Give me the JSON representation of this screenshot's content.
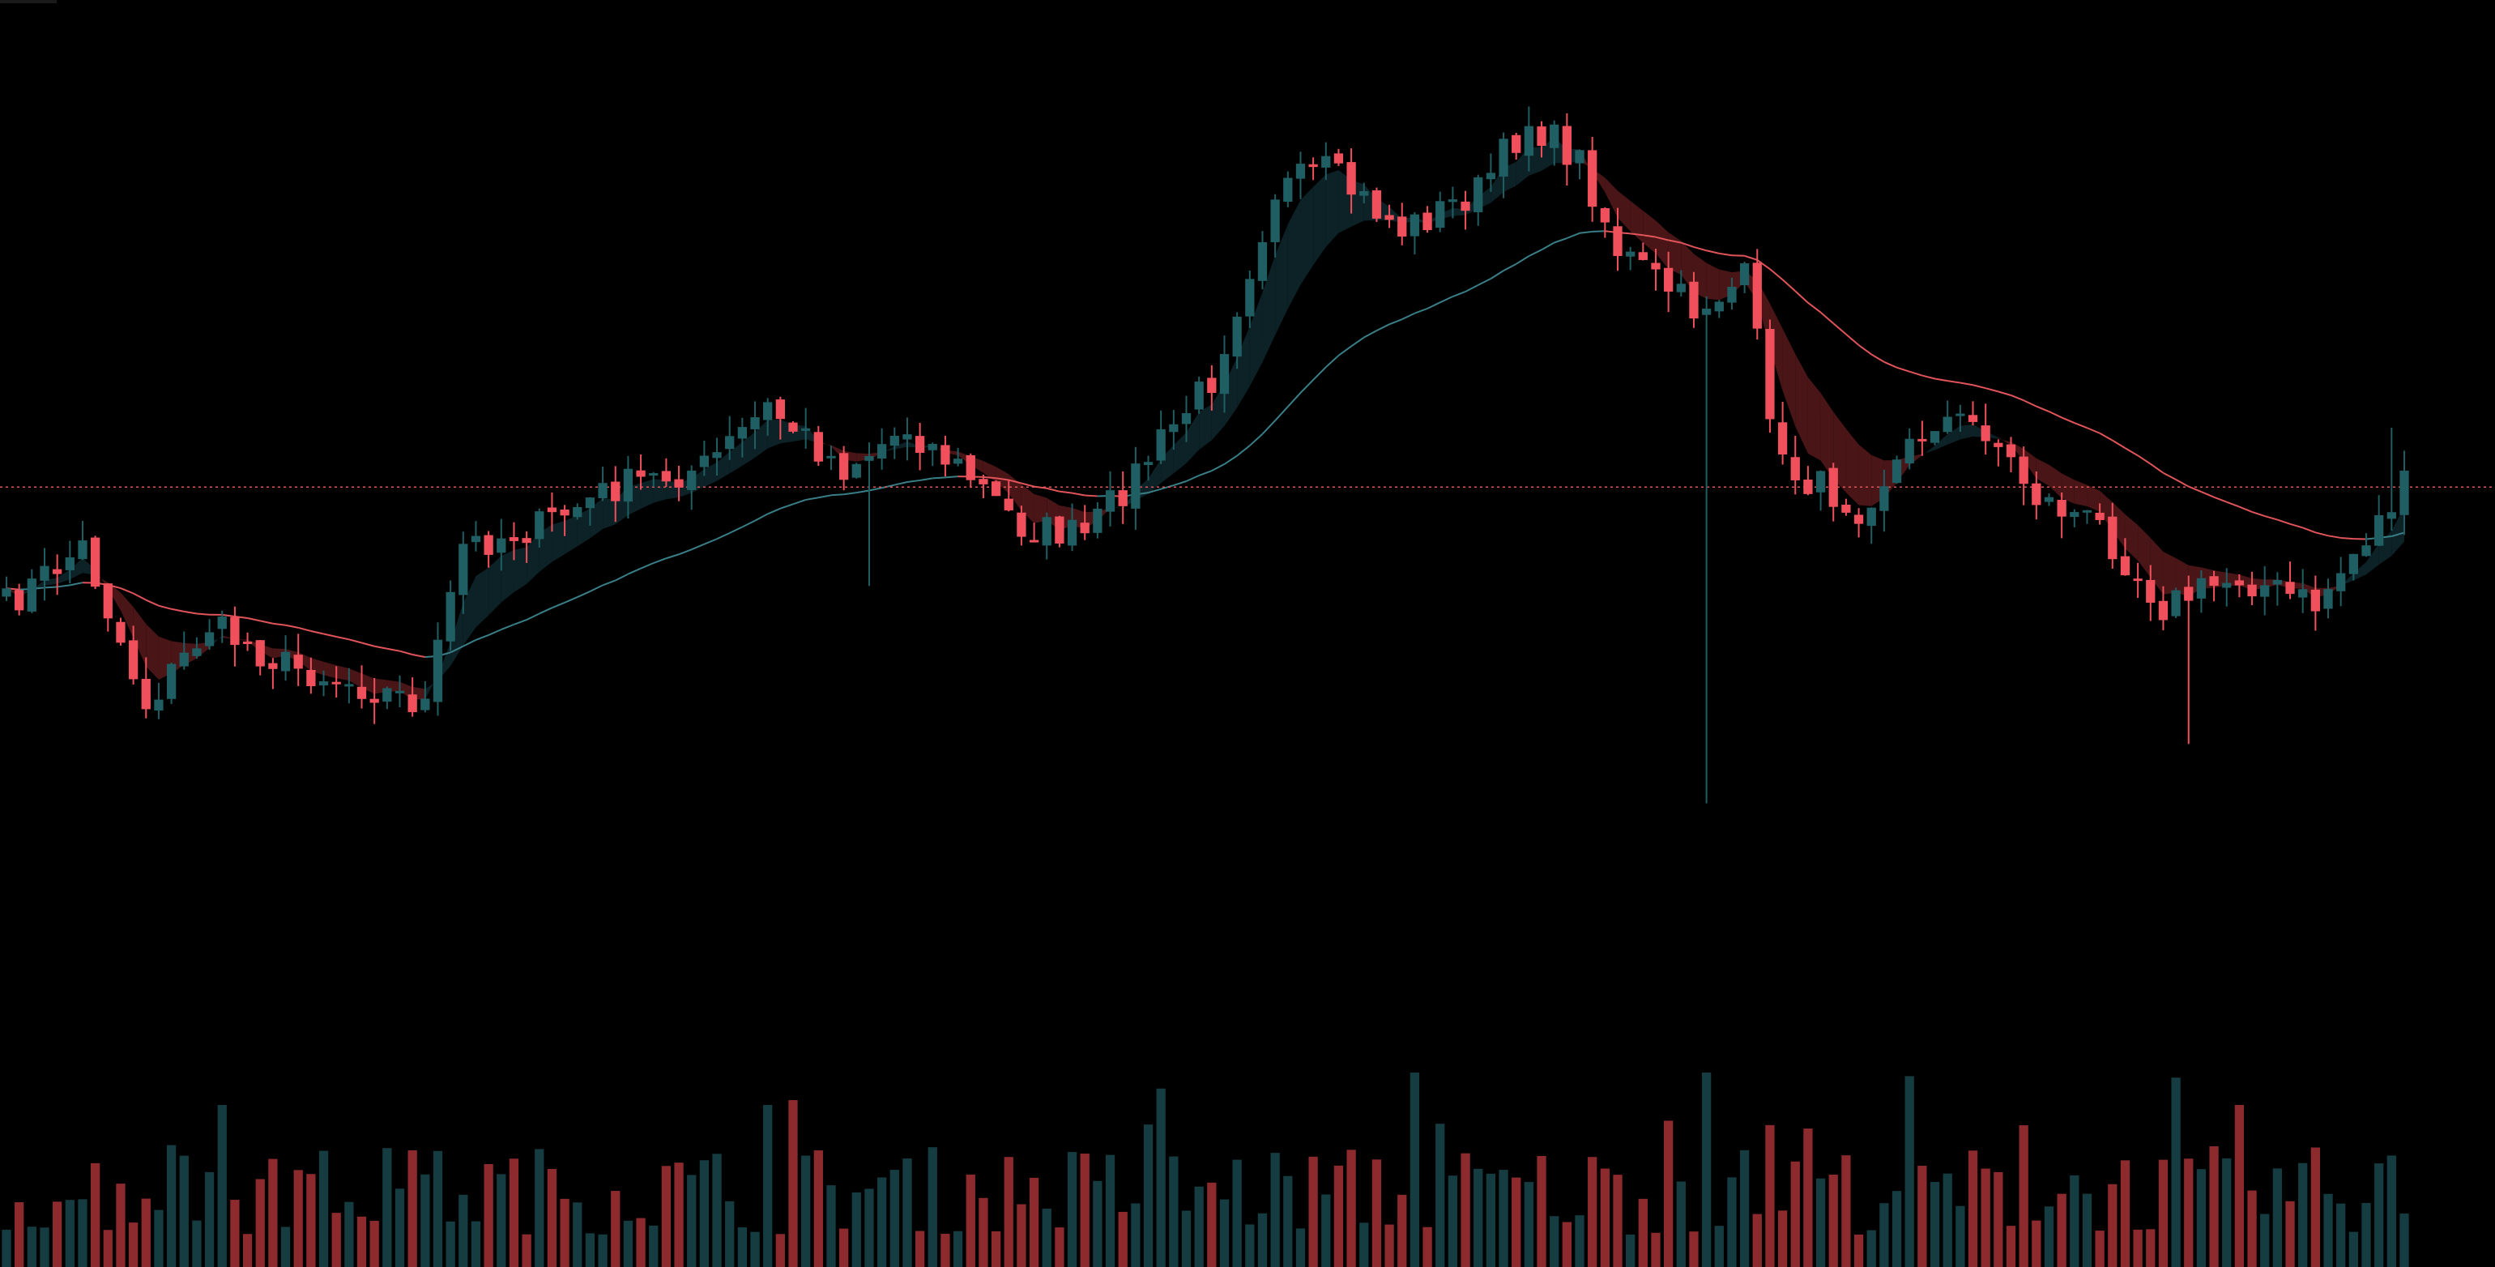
{
  "theme": {
    "background": "#000000",
    "bull_color": "#1f5f63",
    "bear_color": "#f0505c",
    "bull_volume": "#153c40",
    "bear_volume": "#8c2a2e",
    "ema_fast_band_bull": "#0c2226",
    "ema_fast_band_bear": "#4a1517",
    "ma_slow_bull": "#3a7f88",
    "ma_slow_bear": "#e0545a",
    "price_line": "#e0545a"
  },
  "chart_data": {
    "type": "candlestick",
    "grid": false,
    "legend": "none",
    "price_line": 0.46,
    "ylim": [
      0,
      1
    ],
    "candle_count": 190,
    "waypoints": [
      [
        0,
        0.58
      ],
      [
        6,
        0.52
      ],
      [
        11,
        0.68
      ],
      [
        16,
        0.6
      ],
      [
        22,
        0.64
      ],
      [
        28,
        0.66
      ],
      [
        33,
        0.68
      ],
      [
        36,
        0.52
      ],
      [
        42,
        0.5
      ],
      [
        48,
        0.46
      ],
      [
        55,
        0.44
      ],
      [
        60,
        0.38
      ],
      [
        66,
        0.44
      ],
      [
        71,
        0.4
      ],
      [
        76,
        0.45
      ],
      [
        80,
        0.5
      ],
      [
        85,
        0.51
      ],
      [
        90,
        0.43
      ],
      [
        95,
        0.35
      ],
      [
        100,
        0.16
      ],
      [
        104,
        0.14
      ],
      [
        110,
        0.2
      ],
      [
        116,
        0.16
      ],
      [
        120,
        0.09
      ],
      [
        124,
        0.13
      ],
      [
        127,
        0.22
      ],
      [
        133,
        0.28
      ],
      [
        137,
        0.25
      ],
      [
        140,
        0.44
      ],
      [
        146,
        0.48
      ],
      [
        152,
        0.39
      ],
      [
        156,
        0.4
      ],
      [
        160,
        0.47
      ],
      [
        165,
        0.5
      ],
      [
        170,
        0.58
      ],
      [
        176,
        0.55
      ],
      [
        182,
        0.58
      ],
      [
        186,
        0.51
      ],
      [
        189,
        0.46
      ]
    ],
    "volume_seed": 7
  }
}
